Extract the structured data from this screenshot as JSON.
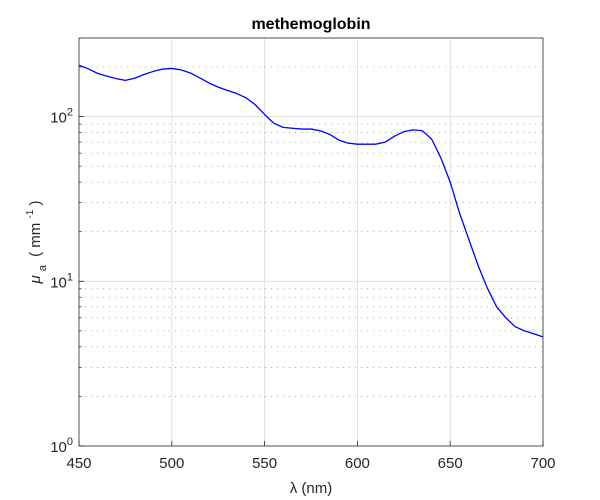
{
  "chart_data": {
    "type": "line",
    "title": "methemoglobin",
    "xlabel": "λ (nm)",
    "ylabel": {
      "symbol": "μ",
      "subscript": "a",
      "unit_prefix": "( mm",
      "unit_exp": "-1",
      "unit_suffix": ")"
    },
    "xlim": [
      450,
      700
    ],
    "ylim": [
      1,
      300
    ],
    "yscale": "log",
    "grid": true,
    "x_ticks": [
      450,
      500,
      550,
      600,
      650,
      700
    ],
    "x_tick_labels": [
      "450",
      "500",
      "550",
      "600",
      "650",
      "700"
    ],
    "y_ticks": [
      {
        "value": 1,
        "base": "10",
        "exp": "0"
      },
      {
        "value": 10,
        "base": "10",
        "exp": "1"
      },
      {
        "value": 100,
        "base": "10",
        "exp": "2"
      }
    ],
    "series": [
      {
        "color": "#0000ff",
        "x": [
          450,
          455,
          460,
          465,
          470,
          475,
          480,
          485,
          490,
          495,
          500,
          505,
          510,
          515,
          520,
          525,
          530,
          535,
          540,
          545,
          550,
          555,
          560,
          565,
          570,
          575,
          580,
          585,
          590,
          595,
          600,
          605,
          610,
          615,
          620,
          625,
          630,
          635,
          640,
          645,
          650,
          655,
          660,
          665,
          670,
          675,
          680,
          685,
          690,
          695,
          700
        ],
        "y": [
          205,
          195,
          183,
          176,
          170,
          166,
          171,
          180,
          188,
          194,
          196,
          192,
          184,
          172,
          160,
          151,
          144,
          138,
          130,
          118,
          103,
          91,
          86,
          85,
          84,
          84,
          82,
          78,
          72,
          69,
          68,
          68,
          68,
          70,
          76,
          81,
          83,
          82,
          73,
          56,
          40,
          26,
          18,
          12.5,
          9.1,
          7.0,
          6.0,
          5.3,
          5.0,
          4.8,
          4.6
        ]
      }
    ]
  }
}
